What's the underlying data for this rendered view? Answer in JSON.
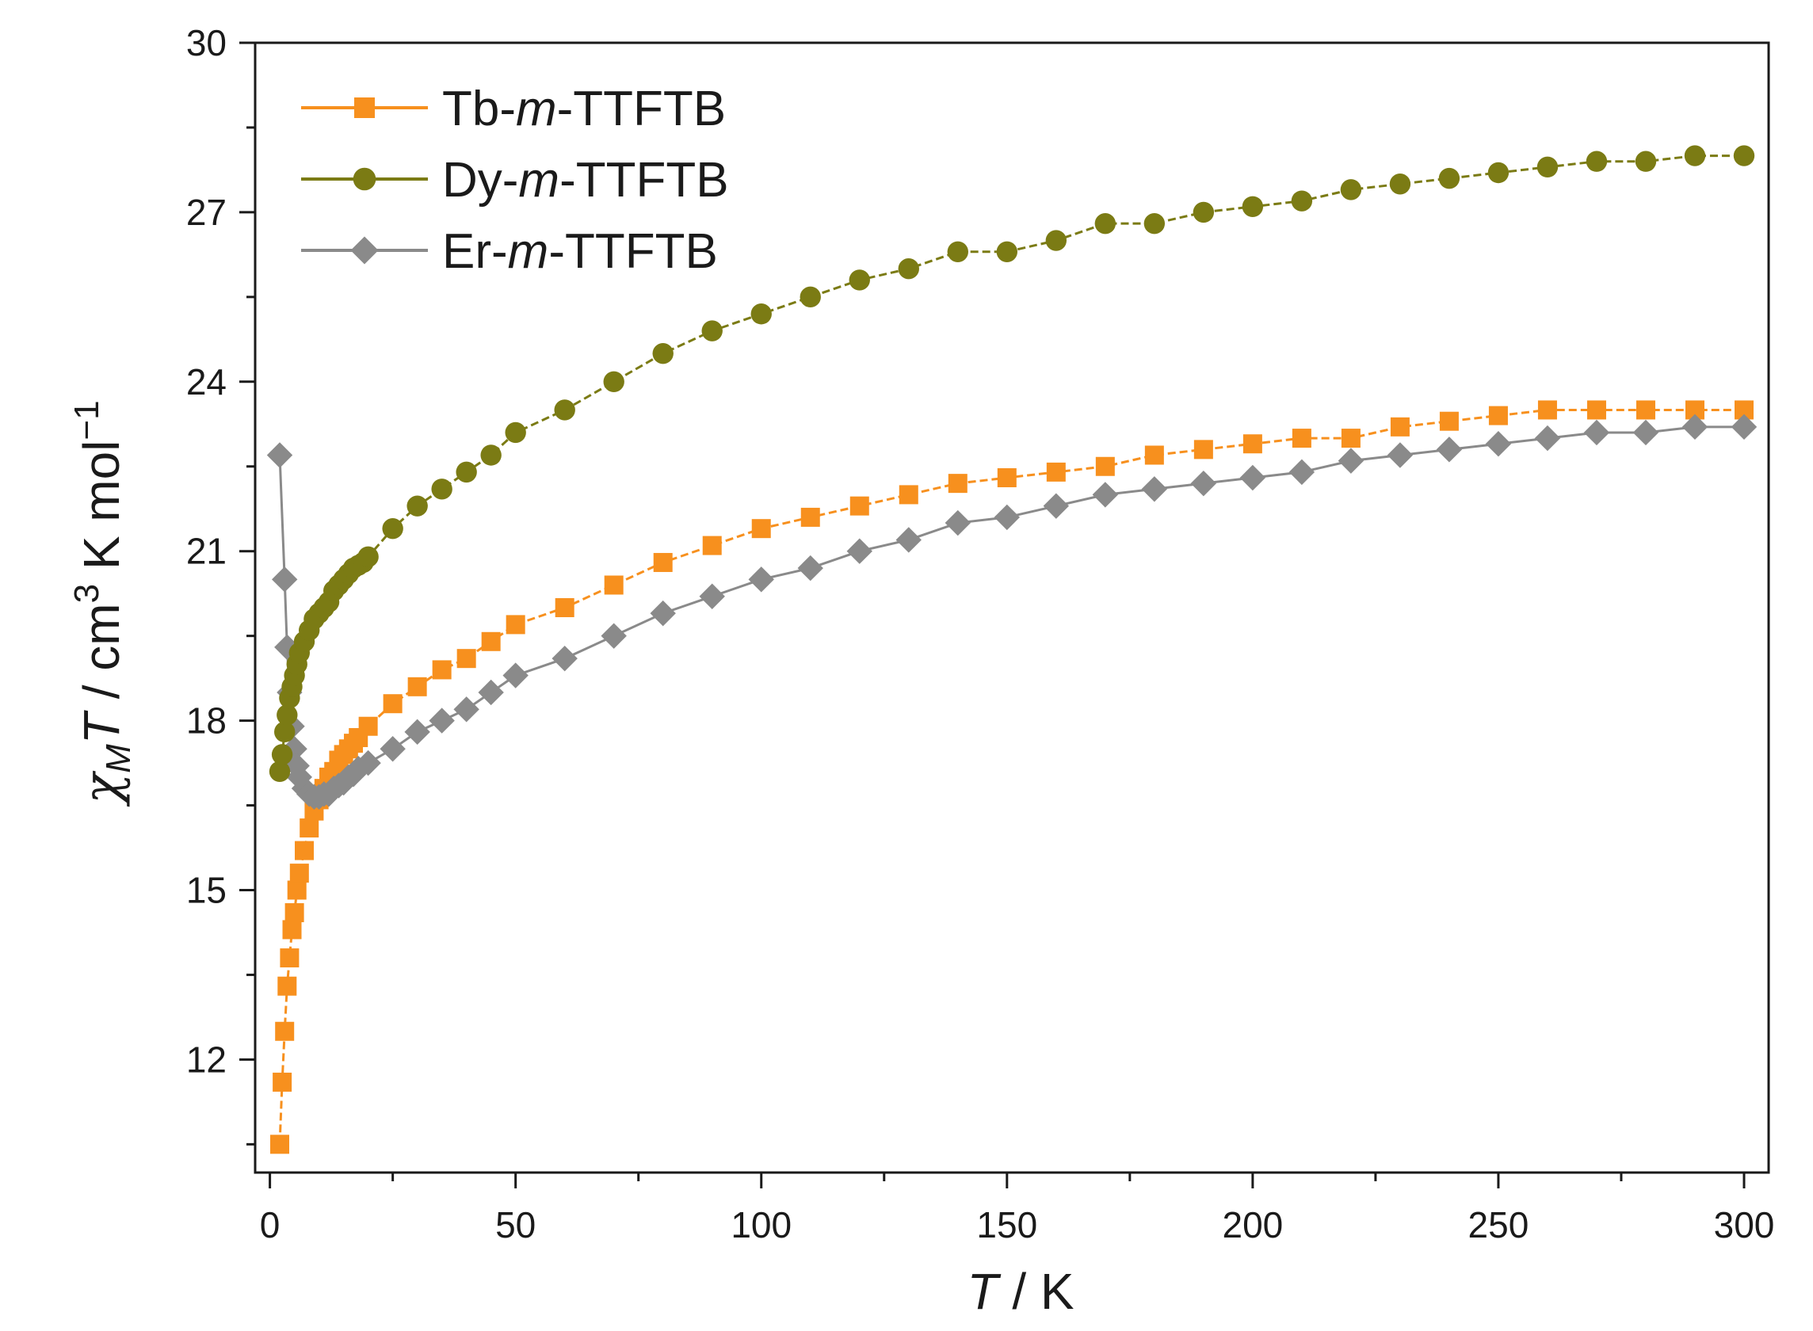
{
  "chart_data": {
    "type": "scatter",
    "title": "",
    "xlabel": "T / K",
    "ylabel": "χMT / cm3 K mol−1",
    "xlim": [
      -3,
      305
    ],
    "ylim": [
      10,
      30
    ],
    "xticks": [
      0,
      50,
      100,
      150,
      200,
      250,
      300
    ],
    "yticks": [
      12,
      15,
      18,
      21,
      24,
      27,
      30
    ],
    "legend_position": "top-left",
    "grid": false,
    "series": [
      {
        "name": "Tb-m-TTFTB",
        "name_prefix": "Tb-",
        "name_italic": "m",
        "name_suffix": "-TTFTB",
        "marker": "square",
        "color": "#F7901E",
        "x": [
          2,
          2.5,
          3,
          3.5,
          4,
          4.5,
          5,
          5.5,
          6,
          7,
          8,
          9,
          10,
          11,
          12,
          13,
          14,
          15,
          16,
          17,
          18,
          20,
          25,
          30,
          35,
          40,
          45,
          50,
          60,
          70,
          80,
          90,
          100,
          110,
          120,
          130,
          140,
          150,
          160,
          170,
          180,
          190,
          200,
          210,
          220,
          230,
          240,
          250,
          260,
          270,
          280,
          290,
          300
        ],
        "y": [
          10.5,
          11.6,
          12.5,
          13.3,
          13.8,
          14.3,
          14.6,
          15.0,
          15.3,
          15.7,
          16.1,
          16.4,
          16.6,
          16.8,
          17.0,
          17.1,
          17.3,
          17.4,
          17.5,
          17.6,
          17.7,
          17.9,
          18.3,
          18.6,
          18.9,
          19.1,
          19.4,
          19.7,
          20.0,
          20.4,
          20.8,
          21.1,
          21.4,
          21.6,
          21.8,
          22.0,
          22.2,
          22.3,
          22.4,
          22.5,
          22.7,
          22.8,
          22.9,
          23.0,
          23.0,
          23.2,
          23.3,
          23.4,
          23.5,
          23.5,
          23.5,
          23.5,
          23.5
        ]
      },
      {
        "name": "Dy-m-TTFTB",
        "name_prefix": "Dy-",
        "name_italic": "m",
        "name_suffix": "-TTFTB",
        "marker": "circle",
        "color": "#7B7B14",
        "x": [
          2,
          2.5,
          3,
          3.5,
          4,
          4.5,
          5,
          5.5,
          6,
          7,
          8,
          9,
          10,
          11,
          12,
          13,
          14,
          15,
          16,
          17,
          18,
          19,
          20,
          25,
          30,
          35,
          40,
          45,
          50,
          60,
          70,
          80,
          90,
          100,
          110,
          120,
          130,
          140,
          150,
          160,
          170,
          180,
          190,
          200,
          210,
          220,
          230,
          240,
          250,
          260,
          270,
          280,
          290,
          300
        ],
        "y": [
          17.1,
          17.4,
          17.8,
          18.1,
          18.4,
          18.6,
          18.8,
          19.0,
          19.2,
          19.4,
          19.6,
          19.8,
          19.9,
          20.0,
          20.1,
          20.3,
          20.4,
          20.5,
          20.6,
          20.7,
          20.75,
          20.8,
          20.9,
          21.4,
          21.8,
          22.1,
          22.4,
          22.7,
          23.1,
          23.5,
          24.0,
          24.5,
          24.9,
          25.2,
          25.5,
          25.8,
          26.0,
          26.3,
          26.3,
          26.5,
          26.8,
          26.8,
          27.0,
          27.1,
          27.2,
          27.4,
          27.5,
          27.6,
          27.7,
          27.8,
          27.9,
          27.9,
          28.0,
          28.0
        ]
      },
      {
        "name": "Er-m-TTFTB",
        "name_prefix": "Er-",
        "name_italic": "m",
        "name_suffix": "-TTFTB",
        "marker": "diamond",
        "color": "#8A8A8A",
        "x": [
          2,
          3,
          3.5,
          4,
          4.5,
          5,
          5.5,
          6,
          7,
          8,
          9,
          10,
          11,
          12,
          13,
          14,
          15,
          16,
          17,
          18,
          20,
          25,
          30,
          35,
          40,
          45,
          50,
          60,
          70,
          80,
          90,
          100,
          110,
          120,
          130,
          140,
          150,
          160,
          170,
          180,
          190,
          200,
          210,
          220,
          230,
          240,
          250,
          260,
          270,
          280,
          290,
          300
        ],
        "y": [
          22.7,
          20.5,
          19.3,
          18.5,
          17.9,
          17.5,
          17.2,
          17.0,
          16.8,
          16.7,
          16.65,
          16.65,
          16.7,
          16.7,
          16.8,
          16.85,
          16.9,
          17.0,
          17.05,
          17.15,
          17.25,
          17.5,
          17.8,
          18.0,
          18.2,
          18.5,
          18.8,
          19.1,
          19.5,
          19.9,
          20.2,
          20.5,
          20.7,
          21.0,
          21.2,
          21.5,
          21.6,
          21.8,
          22.0,
          22.1,
          22.2,
          22.3,
          22.4,
          22.6,
          22.7,
          22.8,
          22.9,
          23.0,
          23.1,
          23.1,
          23.2,
          23.2
        ]
      }
    ]
  }
}
